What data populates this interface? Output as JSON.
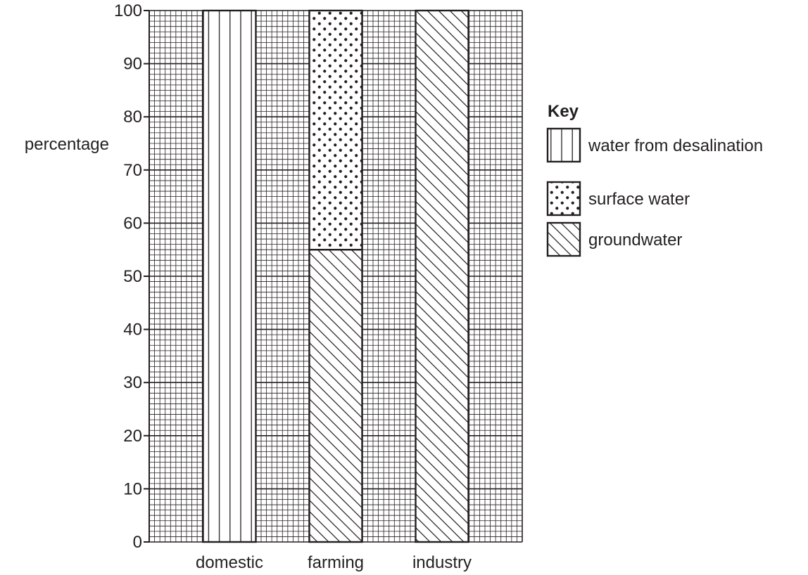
{
  "chart_data": {
    "type": "bar",
    "stacked": true,
    "ylabel": "percentage",
    "xlabel": "",
    "ylim": [
      0,
      100
    ],
    "yticks": [
      "0",
      "10",
      "20",
      "30",
      "40",
      "50",
      "60",
      "70",
      "80",
      "90",
      "100"
    ],
    "grid": true,
    "legend_position": "right",
    "categories": [
      "domestic",
      "farming",
      "industry"
    ],
    "series": [
      {
        "name": "water from desalination",
        "pattern": "vertical-lines",
        "values": [
          100,
          0,
          0
        ]
      },
      {
        "name": "surface water",
        "pattern": "dots",
        "values": [
          0,
          45,
          0
        ]
      },
      {
        "name": "groundwater",
        "pattern": "diagonal-lines",
        "values": [
          0,
          55,
          100
        ]
      }
    ],
    "stack_order": [
      "groundwater",
      "surface water",
      "water from desalination"
    ]
  },
  "key": {
    "title": "Key"
  },
  "colors": {
    "ink": "#231f20",
    "background": "#ffffff"
  }
}
